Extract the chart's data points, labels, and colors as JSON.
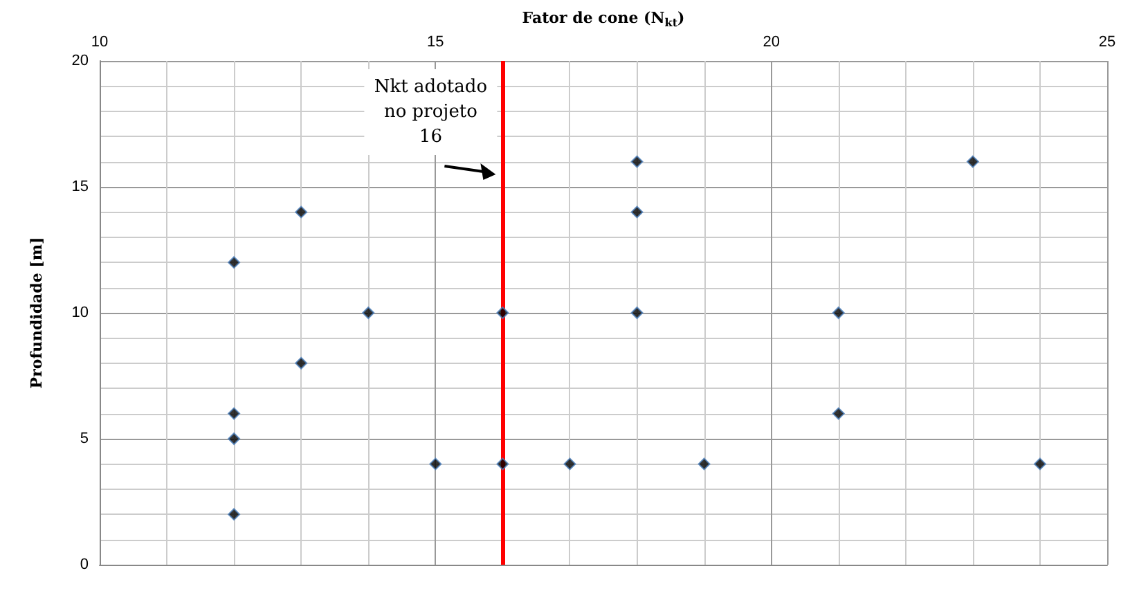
{
  "chart_data": {
    "type": "scatter",
    "xlabel": "Fator de cone (N$_{kt}$)",
    "ylabel": "Profundidade [m]",
    "x": [
      12,
      12,
      12,
      12,
      13,
      13,
      14,
      15,
      16,
      16,
      17,
      18,
      18,
      18,
      19,
      21,
      21,
      23,
      24
    ],
    "series": [
      {
        "color": "#000000",
        "values": [
          12,
          6,
          5,
          2,
          14,
          8,
          10,
          4,
          10,
          4,
          4,
          16,
          14,
          10,
          4,
          10,
          6,
          16,
          4
        ]
      }
    ],
    "marker": "diamond",
    "grid": true,
    "xlim": [
      10,
      25
    ],
    "xticks": [
      10,
      15,
      20,
      25
    ],
    "ylim": [
      0,
      20
    ],
    "yticks": [
      0,
      5,
      10,
      15,
      20
    ],
    "ref_lines": [
      {
        "axis": "x",
        "value": 16,
        "label": "Nkt adotado no projeto 16",
        "color": "#ff0000"
      }
    ]
  }
}
